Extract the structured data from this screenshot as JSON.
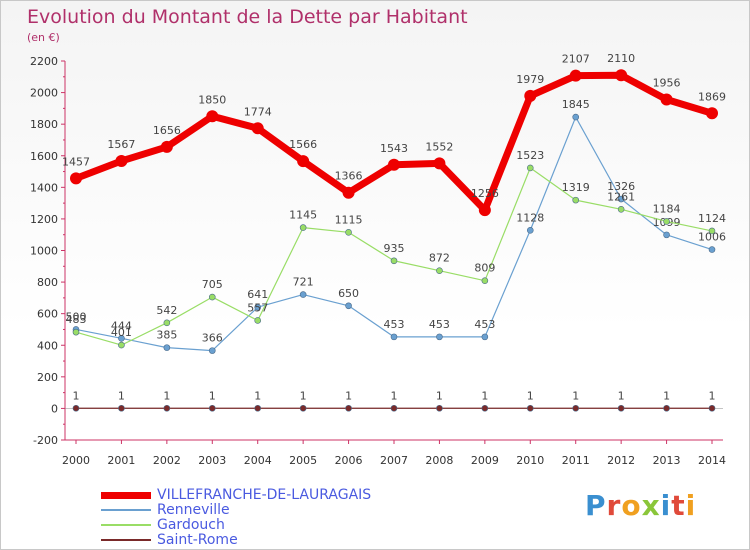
{
  "chart_data": {
    "type": "line",
    "title": "Evolution du Montant de la Dette par Habitant",
    "subtitle": "(en €)",
    "x": [
      2000,
      2001,
      2002,
      2003,
      2004,
      2005,
      2006,
      2007,
      2008,
      2009,
      2010,
      2011,
      2012,
      2013,
      2014
    ],
    "ylim": [
      -200,
      2200
    ],
    "yticks": [
      -200,
      0,
      200,
      400,
      600,
      800,
      1000,
      1200,
      1400,
      1600,
      1800,
      2000,
      2200
    ],
    "grid": false,
    "legend_position": "bottom-left",
    "series": [
      {
        "name": "VILLEFRANCHE-DE-LAURAGAIS",
        "color": "#ee0000",
        "values": [
          1457,
          1567,
          1656,
          1850,
          1774,
          1566,
          1366,
          1543,
          1552,
          1256,
          1979,
          2107,
          2110,
          1956,
          1869
        ]
      },
      {
        "name": "Renneville",
        "color": "#6aa0d0",
        "values": [
          500,
          444,
          385,
          366,
          641,
          721,
          650,
          453,
          453,
          453,
          1128,
          1845,
          1326,
          1099,
          1006
        ]
      },
      {
        "name": "Gardouch",
        "color": "#99dd66",
        "values": [
          483,
          401,
          542,
          705,
          557,
          1145,
          1115,
          935,
          872,
          809,
          1523,
          1319,
          1261,
          1184,
          1124
        ]
      },
      {
        "name": "Saint-Rome",
        "color": "#7a2a2a",
        "values": [
          1,
          1,
          1,
          1,
          1,
          1,
          1,
          1,
          1,
          1,
          1,
          1,
          1,
          1,
          1
        ]
      }
    ]
  },
  "logo": {
    "letters": [
      "P",
      "r",
      "o",
      "x",
      "i",
      "t",
      "i"
    ],
    "colors": [
      "#3a8fd0",
      "#e04a3a",
      "#f0a020",
      "#8ac63a",
      "#3a8fd0",
      "#e04a3a",
      "#f0a020"
    ]
  }
}
